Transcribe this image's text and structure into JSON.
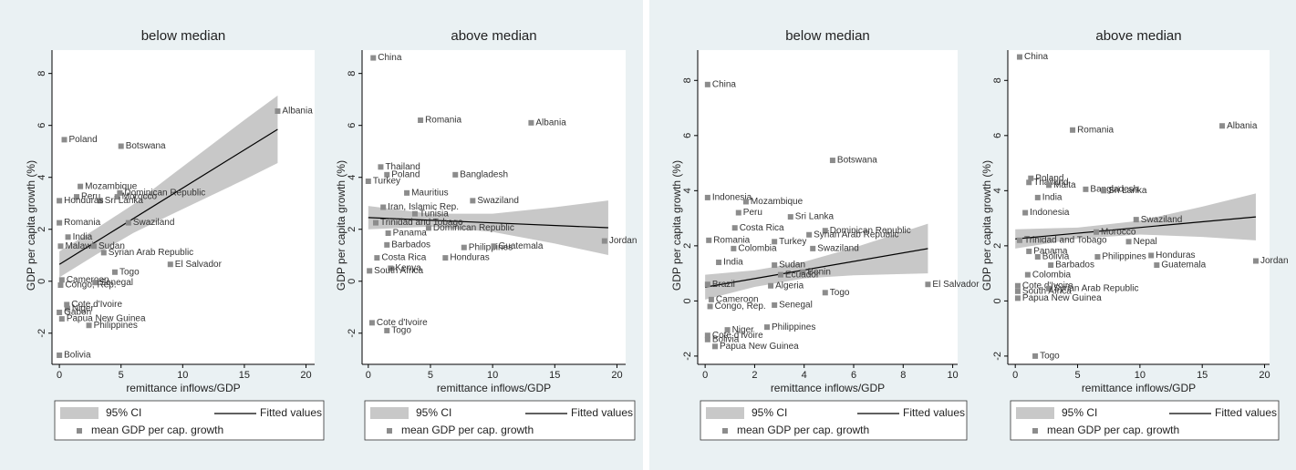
{
  "chart_data": [
    {
      "type": "scatter",
      "title": "below median",
      "xlabel": "remittance inflows/GDP",
      "ylabel": "GDP per capita growth (%)",
      "xlim": [
        -0.6,
        20.7
      ],
      "ylim": [
        -3.2,
        8.9
      ],
      "xticks": [
        0,
        5,
        10,
        15,
        20
      ],
      "yticks": [
        -2,
        0,
        2,
        4,
        6,
        8
      ],
      "series": [
        {
          "name": "mean GDP per cap. growth",
          "color": "#8c8c8c",
          "point_labels": [
            "Albania",
            "Poland",
            "Botswana",
            "Mozambique",
            "Dominican Republic",
            "Morocco",
            "Peru",
            "Sri Lanka",
            "Honduras",
            "Romania",
            "Swaziland",
            "India",
            "Malawi",
            "Sudan",
            "Syrian Arab Republic",
            "El Salvador",
            "Togo",
            "Cameroon",
            "Senegal",
            "Congo, Rep.",
            "Cote d'Ivoire",
            "Niger",
            "Gabon",
            "Papua New Guinea",
            "Philippines",
            "Bolivia"
          ],
          "x": [
            17.7,
            0.4,
            5.0,
            1.7,
            4.9,
            4.7,
            1.4,
            3.3,
            0,
            0,
            5.6,
            0.7,
            0.1,
            2.8,
            3.6,
            9.0,
            4.5,
            0.2,
            2.9,
            0.1,
            0.6,
            0.65,
            0,
            0.2,
            2.4,
            0
          ],
          "values": [
            6.55,
            5.45,
            5.2,
            3.65,
            3.4,
            3.25,
            3.25,
            3.1,
            3.1,
            2.25,
            2.25,
            1.7,
            1.35,
            1.35,
            1.1,
            0.65,
            0.35,
            0.05,
            -0.05,
            -0.15,
            -0.9,
            -1.05,
            -1.2,
            -1.45,
            -1.7,
            -2.85
          ]
        }
      ],
      "fit": {
        "name": "Fitted values",
        "color": "#000000",
        "x": [
          0,
          17.7
        ],
        "values": [
          0.65,
          5.85
        ]
      },
      "ci": {
        "name": "95% CI",
        "color": "#c8c8c8",
        "x": [
          0,
          3,
          6,
          9,
          12,
          15,
          17.7
        ],
        "lower": [
          0.15,
          1.03,
          1.86,
          2.55,
          3.23,
          3.91,
          4.55
        ],
        "upper": [
          1.15,
          2.03,
          2.96,
          4.05,
          5.13,
          6.21,
          7.15
        ]
      }
    },
    {
      "type": "scatter",
      "title": "above median",
      "xlabel": "remittance inflows/GDP",
      "ylabel": "GDP per capita growth (%)",
      "xlim": [
        -0.5,
        20.7
      ],
      "ylim": [
        -3.2,
        8.9
      ],
      "xticks": [
        0,
        5,
        10,
        15,
        20
      ],
      "yticks": [
        -2,
        0,
        2,
        4,
        6,
        8
      ],
      "series": [
        {
          "name": "mean GDP per cap. growth",
          "color": "#8c8c8c",
          "point_labels": [
            "China",
            "Romania",
            "Albania",
            "Thailand",
            "Poland",
            "Bangladesh",
            "Turkey",
            "Mauritius",
            "Swaziland",
            "Iran, Islamic Rep.",
            "Tunisia",
            "Trinidad and Tobago",
            "Dominican Republic",
            "Panama",
            "Barbados",
            "Philippines",
            "Guatemala",
            "Jordan",
            "Honduras",
            "Costa Rica",
            "Kenya",
            "South Africa",
            "Cote d'Ivoire",
            "Togo"
          ],
          "x": [
            0.4,
            4.2,
            13.1,
            1.0,
            1.5,
            7.0,
            0,
            3.1,
            8.4,
            1.2,
            3.75,
            0.6,
            4.85,
            1.6,
            1.5,
            7.7,
            10.1,
            19.0,
            6.2,
            0.7,
            1.8,
            0.1,
            0.3,
            1.5
          ],
          "values": [
            8.6,
            6.2,
            6.1,
            4.4,
            4.1,
            4.1,
            3.85,
            3.4,
            3.1,
            2.85,
            2.6,
            2.25,
            2.05,
            1.85,
            1.4,
            1.3,
            1.35,
            1.55,
            0.9,
            0.9,
            0.5,
            0.4,
            -1.6,
            -1.9
          ]
        }
      ],
      "fit": {
        "name": "Fitted values",
        "color": "#000000",
        "x": [
          0,
          19.3
        ],
        "values": [
          2.45,
          2.06
        ]
      },
      "ci": {
        "name": "95% CI",
        "color": "#c8c8c8",
        "x": [
          0,
          5,
          10,
          15,
          19.3
        ],
        "lower": [
          2.0,
          2.1,
          1.9,
          1.45,
          1.01
        ],
        "upper": [
          2.9,
          2.6,
          2.6,
          2.85,
          3.11
        ]
      }
    },
    {
      "type": "scatter",
      "title": "below median",
      "xlabel": "remittance inflows/GDP",
      "ylabel": "GDP per capita growth (%)",
      "xlim": [
        -0.3,
        10.2
      ],
      "ylim": [
        -2.3,
        9.1
      ],
      "xticks": [
        0,
        2,
        4,
        6,
        8,
        10
      ],
      "yticks": [
        -2,
        0,
        2,
        4,
        6,
        8
      ],
      "series": [
        {
          "name": "mean GDP per cap. growth",
          "color": "#8c8c8c",
          "point_labels": [
            "China",
            "Botswana",
            "Indonesia",
            "Mozambique",
            "Peru",
            "Sri Lanka",
            "Costa Rica",
            "Dominican Republic",
            "Syrian Arab Republic",
            "Romania",
            "Turkey",
            "Colombia",
            "Swaziland",
            "India",
            "Sudan",
            "Benin",
            "Ecuador",
            "Brazil",
            "El Salvador",
            "Algeria",
            "Togo",
            "Cameroon",
            "Senegal",
            "Congo, Rep.",
            "Philippines",
            "Niger",
            "Cote d'Ivoire",
            "Bolivia",
            "Papua New Guinea"
          ],
          "x": [
            0.1,
            5.15,
            0.1,
            1.65,
            1.35,
            3.45,
            1.2,
            4.85,
            4.2,
            0.15,
            2.8,
            1.15,
            4.35,
            0.55,
            2.8,
            3.95,
            3.05,
            0.1,
            9.0,
            2.65,
            4.85,
            0.25,
            2.8,
            0.2,
            2.5,
            0.9,
            0.1,
            0.1,
            0.4
          ],
          "values": [
            7.85,
            5.1,
            3.75,
            3.6,
            3.2,
            3.05,
            2.65,
            2.55,
            2.4,
            2.2,
            2.15,
            1.9,
            1.9,
            1.4,
            1.3,
            1.05,
            0.95,
            0.6,
            0.6,
            0.55,
            0.3,
            0.05,
            -0.15,
            -0.2,
            -0.95,
            -1.05,
            -1.25,
            -1.4,
            -1.65
          ]
        }
      ],
      "fit": {
        "name": "Fitted values",
        "color": "#000000",
        "x": [
          0,
          9
        ],
        "values": [
          0.5,
          1.9
        ]
      },
      "ci": {
        "name": "95% CI",
        "color": "#c8c8c8",
        "x": [
          0,
          2,
          4,
          6,
          9
        ],
        "lower": [
          0.05,
          0.51,
          0.82,
          0.93,
          1.0
        ],
        "upper": [
          0.95,
          1.11,
          1.42,
          1.93,
          2.8
        ]
      }
    },
    {
      "type": "scatter",
      "title": "above median",
      "xlabel": "remittance inflows/GDP",
      "ylabel": "GDP per capita growth (%)",
      "xlim": [
        -0.6,
        20.4
      ],
      "ylim": [
        -2.3,
        9.1
      ],
      "xticks": [
        0,
        5,
        10,
        15,
        20
      ],
      "yticks": [
        -2,
        0,
        2,
        4,
        6,
        8
      ],
      "series": [
        {
          "name": "mean GDP per cap. growth",
          "color": "#8c8c8c",
          "point_labels": [
            "China",
            "Albania",
            "Romania",
            "Poland",
            "Thailand",
            "Malta",
            "Bangladesh",
            "Sri Lanka",
            "India",
            "Indonesia",
            "Swaziland",
            "Morocco",
            "Trinidad and Tobago",
            "Nepal",
            "Panama",
            "Bolivia",
            "Philippines",
            "Honduras",
            "Guatemala",
            "Jordan",
            "Barbados",
            "Colombia",
            "Cote d'Ivoire",
            "Syrian Arab Republic",
            "South Africa",
            "Papua New Guinea",
            "Togo"
          ],
          "x": [
            0.35,
            16.6,
            4.6,
            1.25,
            1.1,
            2.7,
            5.65,
            7.1,
            1.8,
            0.8,
            9.7,
            6.5,
            0.35,
            9.1,
            1.1,
            1.8,
            6.6,
            10.9,
            11.35,
            19.3,
            2.85,
            1.0,
            0.2,
            2.7,
            0.2,
            0.2,
            1.6
          ],
          "values": [
            8.85,
            6.35,
            6.2,
            4.45,
            4.3,
            4.2,
            4.05,
            4.0,
            3.75,
            3.2,
            2.95,
            2.5,
            2.2,
            2.15,
            1.8,
            1.6,
            1.6,
            1.65,
            1.3,
            1.45,
            1.3,
            0.95,
            0.55,
            0.45,
            0.35,
            0.1,
            -2.0
          ]
        }
      ],
      "fit": {
        "name": "Fitted values",
        "color": "#000000",
        "x": [
          0,
          19.3
        ],
        "values": [
          2.25,
          3.05
        ]
      },
      "ci": {
        "name": "95% CI",
        "color": "#c8c8c8",
        "x": [
          0,
          5,
          10,
          15,
          19.3
        ],
        "lower": [
          1.9,
          2.26,
          2.41,
          2.32,
          2.2
        ],
        "upper": [
          2.6,
          2.66,
          2.91,
          3.42,
          3.9
        ]
      }
    }
  ]
}
